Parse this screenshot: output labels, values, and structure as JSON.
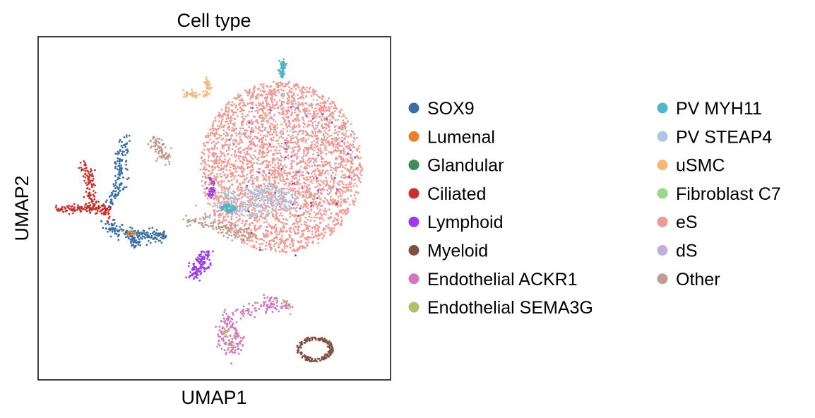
{
  "chart_data": {
    "type": "scatter",
    "title": "Cell type",
    "xlabel": "UMAP1",
    "ylabel": "UMAP2",
    "ticks": false,
    "grid": false,
    "legend_position": "right",
    "xlim": [
      0,
      10
    ],
    "ylim": [
      0,
      10
    ],
    "categories": [
      {
        "name": "SOX9",
        "color": "#3a6ea5"
      },
      {
        "name": "Lumenal",
        "color": "#e8822c"
      },
      {
        "name": "Glandular",
        "color": "#3e8e5c"
      },
      {
        "name": "Ciliated",
        "color": "#c8302c"
      },
      {
        "name": "Lymphoid",
        "color": "#9b3de8"
      },
      {
        "name": "Myeloid",
        "color": "#7f5142"
      },
      {
        "name": "Endothelial ACKR1",
        "color": "#d277bc"
      },
      {
        "name": "Endothelial SEMA3G",
        "color": "#b6bd6a"
      },
      {
        "name": "PV MYH11",
        "color": "#4fb5c8"
      },
      {
        "name": "PV STEAP4",
        "color": "#aec5e6"
      },
      {
        "name": "uSMC",
        "color": "#f2b97a"
      },
      {
        "name": "Fibroblast C7",
        "color": "#9ad98a"
      },
      {
        "name": "eS",
        "color": "#ee9a92"
      },
      {
        "name": "dS",
        "color": "#c2afd4"
      },
      {
        "name": "Other",
        "color": "#c09c92"
      }
    ],
    "clusters": [
      {
        "category": "eS",
        "shape": "ellipse",
        "cx": 6.9,
        "cy": 6.2,
        "rx": 2.3,
        "ry": 2.5,
        "n": 3200
      },
      {
        "category": "PV STEAP4",
        "shape": "ellipse",
        "cx": 6.2,
        "cy": 5.2,
        "rx": 1.2,
        "ry": 0.45,
        "n": 260
      },
      {
        "category": "PV STEAP4",
        "shape": "ellipse",
        "cx": 7.2,
        "cy": 6.6,
        "rx": 1.8,
        "ry": 1.8,
        "n": 120
      },
      {
        "category": "Lymphoid",
        "shape": "ellipse",
        "cx": 7.2,
        "cy": 6.5,
        "rx": 1.9,
        "ry": 1.9,
        "n": 40
      },
      {
        "category": "Myeloid",
        "shape": "ellipse",
        "cx": 7.1,
        "cy": 4.5,
        "rx": 1.6,
        "ry": 1.2,
        "n": 10
      },
      {
        "category": "Lymphoid",
        "shape": "ellipse",
        "cx": 4.9,
        "cy": 5.6,
        "rx": 0.12,
        "ry": 0.3,
        "n": 40
      },
      {
        "category": "PV MYH11",
        "shape": "ellipse",
        "cx": 5.4,
        "cy": 5.0,
        "rx": 0.22,
        "ry": 0.12,
        "n": 60
      },
      {
        "category": "PV MYH11",
        "shape": "path",
        "pts": [
          [
            6.95,
            9.28
          ],
          [
            6.93,
            9.1
          ],
          [
            6.92,
            8.85
          ]
        ],
        "spread": 0.04,
        "n": 60
      },
      {
        "category": "uSMC",
        "shape": "path",
        "pts": [
          [
            4.8,
            8.75
          ],
          [
            4.85,
            8.45
          ],
          [
            4.7,
            8.3
          ]
        ],
        "spread": 0.05,
        "n": 40
      },
      {
        "category": "uSMC",
        "shape": "path",
        "pts": [
          [
            4.1,
            8.35
          ],
          [
            4.5,
            8.3
          ]
        ],
        "spread": 0.05,
        "n": 35
      },
      {
        "category": "Other",
        "shape": "path",
        "pts": [
          [
            3.2,
            7.0
          ],
          [
            3.4,
            6.8
          ],
          [
            3.55,
            6.6
          ],
          [
            3.6,
            6.4
          ]
        ],
        "spread": 0.1,
        "n": 80
      },
      {
        "category": "Other",
        "shape": "path",
        "pts": [
          [
            4.2,
            4.6
          ],
          [
            4.7,
            4.7
          ],
          [
            5.4,
            4.4
          ],
          [
            6.0,
            4.2
          ]
        ],
        "spread": 0.12,
        "n": 130
      },
      {
        "category": "SOX9",
        "shape": "path",
        "pts": [
          [
            2.5,
            7.0
          ],
          [
            2.3,
            6.5
          ],
          [
            2.35,
            6.0
          ],
          [
            2.2,
            5.4
          ],
          [
            2.0,
            5.0
          ]
        ],
        "spread": 0.08,
        "n": 140
      },
      {
        "category": "SOX9",
        "shape": "path",
        "pts": [
          [
            1.8,
            4.6
          ],
          [
            2.3,
            4.3
          ],
          [
            3.0,
            4.2
          ],
          [
            3.6,
            4.2
          ]
        ],
        "spread": 0.1,
        "n": 170
      },
      {
        "category": "SOX9",
        "shape": "path",
        "pts": [
          [
            2.7,
            4.1
          ],
          [
            2.8,
            3.9
          ]
        ],
        "spread": 0.08,
        "n": 30
      },
      {
        "category": "Lumenal",
        "shape": "path",
        "pts": [
          [
            2.4,
            4.3
          ],
          [
            2.8,
            4.25
          ]
        ],
        "spread": 0.05,
        "n": 12
      },
      {
        "category": "Ciliated",
        "shape": "path",
        "pts": [
          [
            1.3,
            6.3
          ],
          [
            1.5,
            5.8
          ],
          [
            1.45,
            5.3
          ],
          [
            1.7,
            5.0
          ],
          [
            2.0,
            4.8
          ]
        ],
        "spread": 0.08,
        "n": 120
      },
      {
        "category": "Ciliated",
        "shape": "path",
        "pts": [
          [
            0.5,
            5.0
          ],
          [
            1.0,
            4.95
          ],
          [
            1.5,
            5.0
          ],
          [
            2.0,
            5.0
          ]
        ],
        "spread": 0.06,
        "n": 110
      },
      {
        "category": "Lymphoid",
        "shape": "path",
        "pts": [
          [
            4.8,
            3.7
          ],
          [
            4.5,
            3.4
          ],
          [
            4.3,
            3.15
          ],
          [
            4.45,
            3.0
          ],
          [
            4.7,
            3.3
          ],
          [
            4.8,
            3.7
          ]
        ],
        "spread": 0.08,
        "n": 120
      },
      {
        "category": "Endothelial ACKR1",
        "shape": "path",
        "pts": [
          [
            5.4,
            1.9
          ],
          [
            5.3,
            1.6
          ],
          [
            5.25,
            1.2
          ],
          [
            5.5,
            0.8
          ],
          [
            5.7,
            1.1
          ],
          [
            5.4,
            1.9
          ]
        ],
        "spread": 0.1,
        "n": 140
      },
      {
        "category": "Endothelial ACKR1",
        "shape": "path",
        "pts": [
          [
            5.7,
            1.9
          ],
          [
            6.2,
            2.1
          ],
          [
            6.7,
            2.2
          ],
          [
            7.1,
            2.1
          ]
        ],
        "spread": 0.08,
        "n": 80
      },
      {
        "category": "Endothelial ACKR1",
        "shape": "path",
        "pts": [
          [
            6.4,
            2.4
          ],
          [
            6.8,
            2.3
          ]
        ],
        "spread": 0.06,
        "n": 20
      },
      {
        "category": "Endothelial SEMA3G",
        "shape": "path",
        "pts": [
          [
            5.3,
            1.5
          ],
          [
            5.6,
            0.9
          ]
        ],
        "spread": 0.08,
        "n": 15
      },
      {
        "category": "Endothelial SEMA3G",
        "shape": "path",
        "pts": [
          [
            7.0,
            2.3
          ],
          [
            7.2,
            2.0
          ]
        ],
        "spread": 0.05,
        "n": 8
      },
      {
        "category": "Myeloid",
        "shape": "ring",
        "cx": 7.85,
        "cy": 0.9,
        "rx": 0.5,
        "ry": 0.35,
        "n": 170
      }
    ]
  }
}
